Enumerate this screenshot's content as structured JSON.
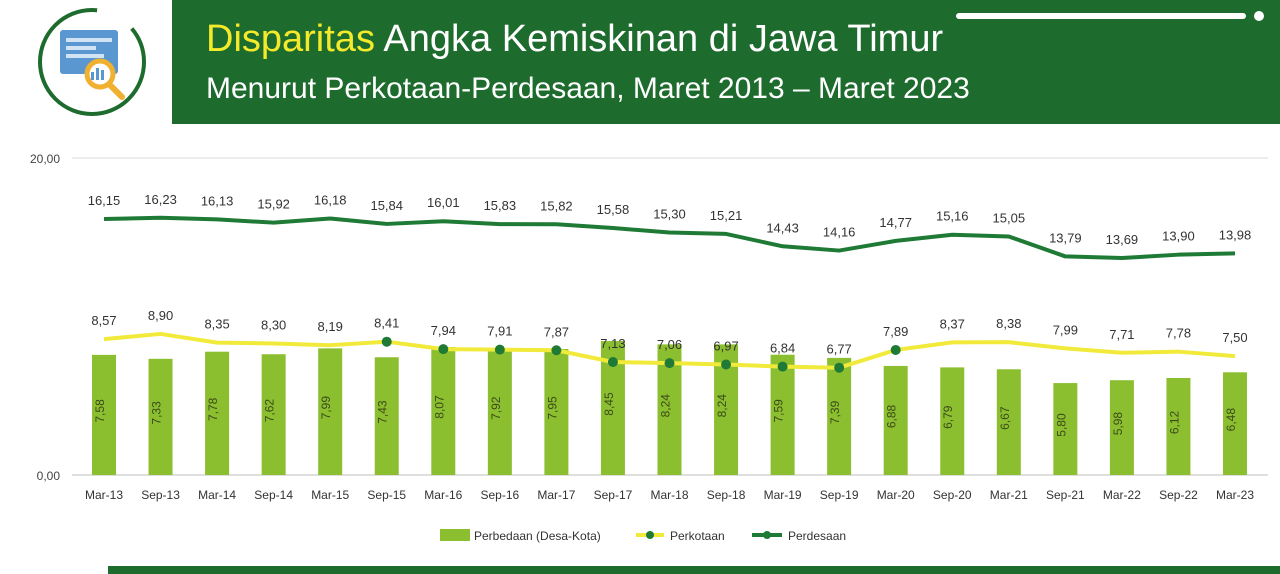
{
  "header": {
    "title_highlight": "Disparitas",
    "title_rest": "Angka Kemiskinan di Jawa Timur",
    "subtitle": "Menurut Perkotaan-Perdesaan, Maret 2013 – Maret 2023",
    "logo_icon": "report-analytics-icon"
  },
  "colors": {
    "header_bg": "#1e6b2e",
    "title_accent": "#f4ea2a",
    "bar": "#8cbf2f",
    "perkotaan_line": "#f2ea3a",
    "perdesaan_line": "#1f7a36",
    "marker": "#1f7a36"
  },
  "chart_data": {
    "type": "bar",
    "categories": [
      "Mar-13",
      "Sep-13",
      "Mar-14",
      "Sep-14",
      "Mar-15",
      "Sep-15",
      "Mar-16",
      "Sep-16",
      "Mar-17",
      "Sep-17",
      "Mar-18",
      "Sep-18",
      "Mar-19",
      "Sep-19",
      "Mar-20",
      "Sep-20",
      "Mar-21",
      "Sep-21",
      "Mar-22",
      "Sep-22",
      "Mar-23"
    ],
    "ylim": [
      0,
      20
    ],
    "yticks": [
      "0,00",
      "20,00"
    ],
    "legend_position": "bottom",
    "series": [
      {
        "name": "Perbedaan (Desa-Kota)",
        "type": "bar",
        "values": [
          7.58,
          7.33,
          7.78,
          7.62,
          7.99,
          7.43,
          8.07,
          7.92,
          7.95,
          8.45,
          8.24,
          8.24,
          7.59,
          7.39,
          6.88,
          6.79,
          6.67,
          5.8,
          5.98,
          6.12,
          6.48
        ],
        "labels": [
          "7,58",
          "7,33",
          "7,78",
          "7,62",
          "7,99",
          "7,43",
          "8,07",
          "7,92",
          "7,95",
          "8,45",
          "8,24",
          "8,24",
          "7,59",
          "7,39",
          "6,88",
          "6,79",
          "6,67",
          "5,80",
          "5,98",
          "6,12",
          "6,48"
        ]
      },
      {
        "name": "Perkotaan",
        "type": "line",
        "values": [
          8.57,
          8.9,
          8.35,
          8.3,
          8.19,
          8.41,
          7.94,
          7.91,
          7.87,
          7.13,
          7.06,
          6.97,
          6.84,
          6.77,
          7.89,
          8.37,
          8.38,
          7.99,
          7.71,
          7.78,
          7.5
        ],
        "labels": [
          "8,57",
          "8,90",
          "8,35",
          "8,30",
          "8,19",
          "8,41",
          "7,94",
          "7,91",
          "7,87",
          "7,13",
          "7,06",
          "6,97",
          "6,84",
          "6,77",
          "7,89",
          "8,37",
          "8,38",
          "7,99",
          "7,71",
          "7,78",
          "7,50"
        ]
      },
      {
        "name": "Perdesaan",
        "type": "line",
        "values": [
          16.15,
          16.23,
          16.13,
          15.92,
          16.18,
          15.84,
          16.01,
          15.83,
          15.82,
          15.58,
          15.3,
          15.21,
          14.43,
          14.16,
          14.77,
          15.16,
          15.05,
          13.79,
          13.69,
          13.9,
          13.98
        ],
        "labels": [
          "16,15",
          "16,23",
          "16,13",
          "15,92",
          "16,18",
          "15,84",
          "16,01",
          "15,83",
          "15,82",
          "15,58",
          "15,30",
          "15,21",
          "14,43",
          "14,16",
          "14,77",
          "15,16",
          "15,05",
          "13,79",
          "13,69",
          "13,90",
          "13,98"
        ]
      }
    ]
  }
}
